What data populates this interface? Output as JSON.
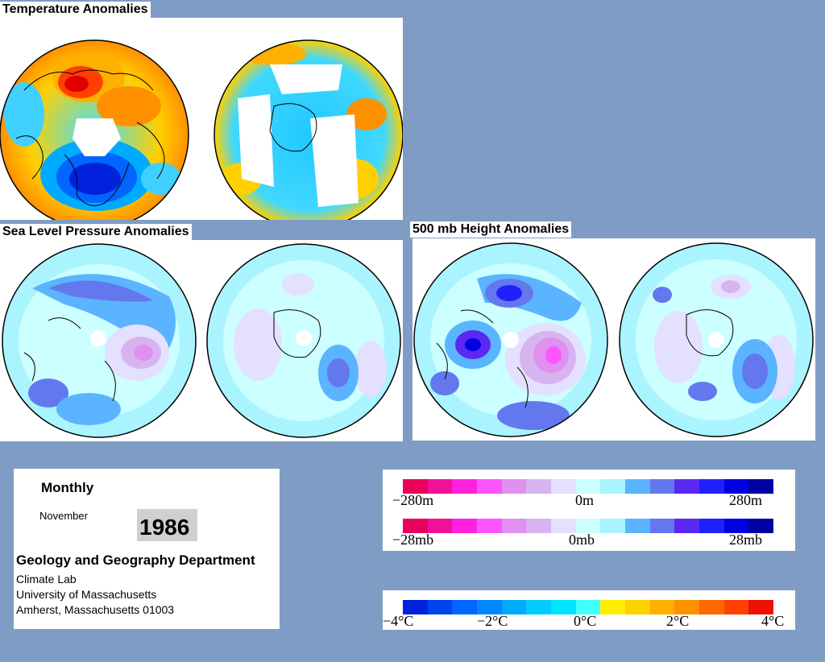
{
  "titles": {
    "temperature": "Temperature Anomalies",
    "slp": "Sea Level Pressure Anomalies",
    "height": "500 mb Height Anomalies"
  },
  "info": {
    "period": "Monthly",
    "month": "November",
    "year": "1986",
    "department": "Geology and Geography Department",
    "lab": "Climate Lab",
    "university": "University of Massachusetts",
    "address": "Amherst, Massachusetts 01003"
  },
  "height_scale": {
    "min_label": "−280m",
    "mid_label": "0m",
    "max_label": "280m",
    "colors": [
      "#e8005a",
      "#f0109a",
      "#ff20e0",
      "#ff55ff",
      "#e090f0",
      "#d7b4f0",
      "#e4e0ff",
      "#ccffff",
      "#aaf4ff",
      "#5ab4ff",
      "#6478ee",
      "#5a28f0",
      "#2020ff",
      "#0000e0",
      "#0000a0"
    ]
  },
  "pressure_scale": {
    "min_label": "−28mb",
    "mid_label": "0mb",
    "max_label": "28mb",
    "colors": [
      "#e8005a",
      "#f0109a",
      "#ff20e0",
      "#ff55ff",
      "#e090f0",
      "#d7b4f0",
      "#e4e0ff",
      "#ccffff",
      "#aaf4ff",
      "#5ab4ff",
      "#6478ee",
      "#5a28f0",
      "#2020ff",
      "#0000e0",
      "#0000a0"
    ]
  },
  "temp_scale": {
    "labels": [
      "−4°C",
      "−2°C",
      "0°C",
      "2°C",
      "4°C"
    ],
    "colors": [
      "#0022dd",
      "#0044ee",
      "#0066ff",
      "#0088ff",
      "#00aaff",
      "#00ccff",
      "#00e4ff",
      "#40ffff",
      "#ffee00",
      "#ffd000",
      "#ffb000",
      "#ff9000",
      "#ff6800",
      "#ff4000",
      "#ee1000"
    ]
  }
}
